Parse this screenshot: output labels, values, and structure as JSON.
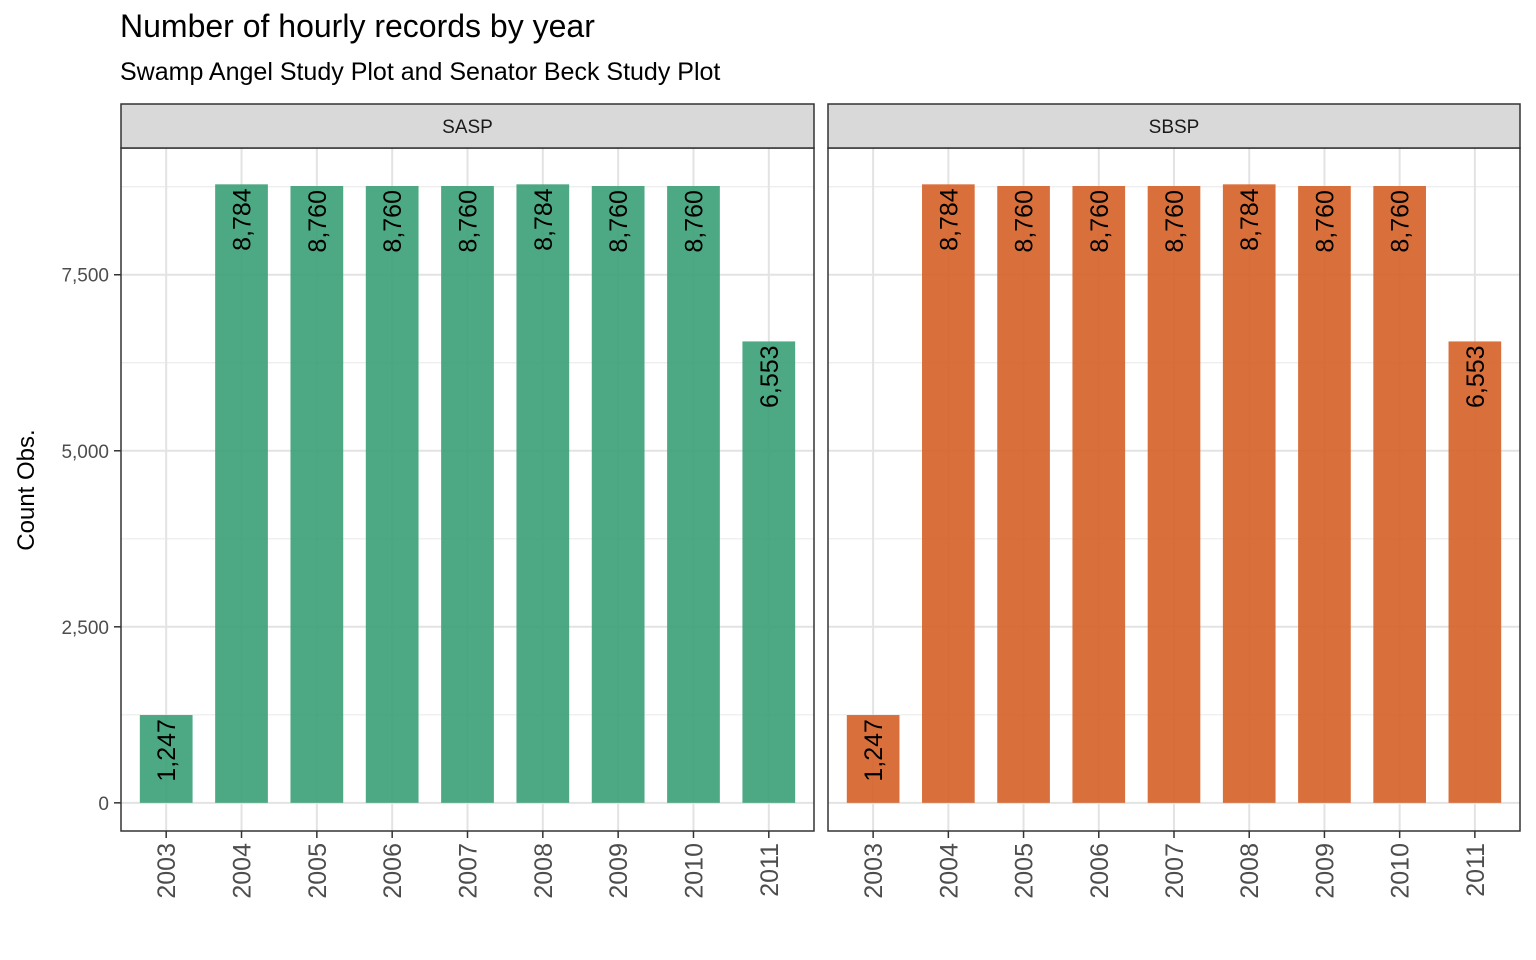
{
  "chart_data": {
    "type": "bar",
    "title": "Number of hourly records by year",
    "subtitle": "Swamp Angel Study Plot and Senator Beck Study Plot",
    "xlabel": "",
    "ylabel": "Count Obs.",
    "ylim": [
      -400,
      9300
    ],
    "yticks": [
      0,
      2500,
      5000,
      7500
    ],
    "ytick_labels": [
      "0",
      "2,500",
      "5,000",
      "7,500"
    ],
    "categories": [
      "2003",
      "2004",
      "2005",
      "2006",
      "2007",
      "2008",
      "2009",
      "2010",
      "2011"
    ],
    "grid": true,
    "legend": "none",
    "facets": [
      {
        "name": "SASP",
        "color": "#3a9e77",
        "values": [
          1247,
          8784,
          8760,
          8760,
          8760,
          8784,
          8760,
          8760,
          6553
        ],
        "labels": [
          "1,247",
          "8,784",
          "8,760",
          "8,760",
          "8,760",
          "8,784",
          "8,760",
          "8,760",
          "6,553"
        ]
      },
      {
        "name": "SBSP",
        "color": "#d55f26",
        "values": [
          1247,
          8784,
          8760,
          8760,
          8760,
          8784,
          8760,
          8760,
          6553
        ],
        "labels": [
          "1,247",
          "8,784",
          "8,760",
          "8,760",
          "8,760",
          "8,784",
          "8,760",
          "8,760",
          "6,553"
        ]
      }
    ]
  }
}
